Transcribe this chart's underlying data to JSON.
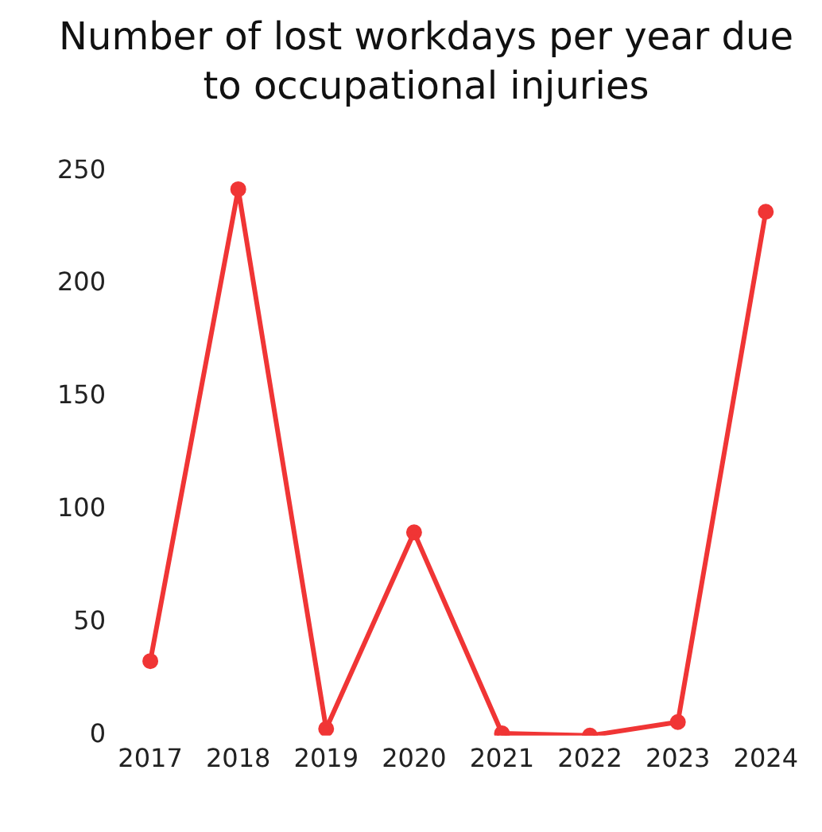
{
  "chart_data": {
    "type": "line",
    "title": "Number of lost workdays per year due to occupational injuries",
    "categories": [
      "2017",
      "2018",
      "2019",
      "2020",
      "2021",
      "2022",
      "2023",
      "2024"
    ],
    "series": [
      {
        "color": "#f03535",
        "values": [
          33,
          242,
          3,
          90,
          1,
          0,
          6,
          232
        ]
      }
    ],
    "ylim": [
      0,
      250
    ],
    "yticks": [
      0,
      50,
      100,
      150,
      200,
      250
    ],
    "grid": false,
    "legend": false,
    "marker": "circle",
    "line_style": "solid"
  }
}
